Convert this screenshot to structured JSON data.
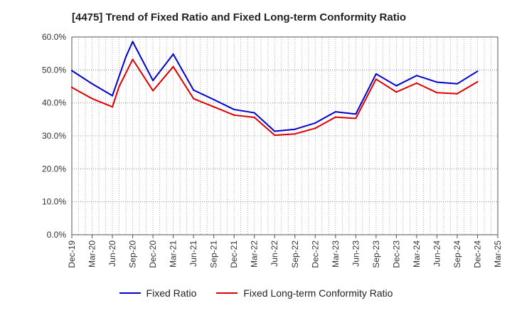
{
  "chart_data": {
    "type": "line",
    "title": "[4475]  Trend of Fixed Ratio and Fixed Long-term Conformity Ratio",
    "xlabel": "",
    "ylabel": "",
    "ylim": [
      0,
      60
    ],
    "yticks": [
      "0.0%",
      "10.0%",
      "20.0%",
      "30.0%",
      "40.0%",
      "50.0%",
      "60.0%"
    ],
    "categories": [
      "Dec-19",
      "Mar-20",
      "Jun-20",
      "Sep-20",
      "Dec-20",
      "Mar-21",
      "Jun-21",
      "Sep-21",
      "Dec-21",
      "Mar-22",
      "Jun-22",
      "Sep-22",
      "Dec-22",
      "Mar-23",
      "Jun-23",
      "Sep-23",
      "Dec-23",
      "Mar-24",
      "Jun-24",
      "Sep-24",
      "Dec-24",
      "Mar-25"
    ],
    "grid": true,
    "legend_position": "bottom",
    "series": [
      {
        "name": "Fixed Ratio",
        "color": "#0000cc",
        "points": [
          [
            "Dec-19",
            49.8
          ],
          [
            "Mar-20",
            45.8
          ],
          [
            "Jun-20",
            42.2
          ],
          [
            "Aug-20",
            54.0
          ],
          [
            "Sep-20",
            58.6
          ],
          [
            "Dec-20",
            46.8
          ],
          [
            "Mar-21",
            54.8
          ],
          [
            "Jun-21",
            43.9
          ],
          [
            "Sep-21",
            41.0
          ],
          [
            "Dec-21",
            38.0
          ],
          [
            "Mar-22",
            37.0
          ],
          [
            "Jun-22",
            31.4
          ],
          [
            "Sep-22",
            32.0
          ],
          [
            "Dec-22",
            33.9
          ],
          [
            "Mar-23",
            37.3
          ],
          [
            "Jun-23",
            36.6
          ],
          [
            "Sep-23",
            48.8
          ],
          [
            "Dec-23",
            45.2
          ],
          [
            "Mar-24",
            48.3
          ],
          [
            "Jun-24",
            46.3
          ],
          [
            "Sep-24",
            45.8
          ],
          [
            "Dec-24",
            49.6
          ]
        ]
      },
      {
        "name": "Fixed Long-term Conformity Ratio",
        "color": "#dd0000",
        "points": [
          [
            "Dec-19",
            44.7
          ],
          [
            "Mar-20",
            41.3
          ],
          [
            "Jun-20",
            38.8
          ],
          [
            "Jul-20",
            45.0
          ],
          [
            "Sep-20",
            53.2
          ],
          [
            "Dec-20",
            43.7
          ],
          [
            "Mar-21",
            51.0
          ],
          [
            "Jun-21",
            41.3
          ],
          [
            "Sep-21",
            38.8
          ],
          [
            "Dec-21",
            36.3
          ],
          [
            "Mar-22",
            35.6
          ],
          [
            "Jun-22",
            30.2
          ],
          [
            "Sep-22",
            30.6
          ],
          [
            "Dec-22",
            32.3
          ],
          [
            "Mar-23",
            35.7
          ],
          [
            "Jun-23",
            35.3
          ],
          [
            "Sep-23",
            47.2
          ],
          [
            "Dec-23",
            43.3
          ],
          [
            "Mar-24",
            46.0
          ],
          [
            "Jun-24",
            43.1
          ],
          [
            "Sep-24",
            42.8
          ],
          [
            "Dec-24",
            46.4
          ]
        ]
      }
    ]
  }
}
